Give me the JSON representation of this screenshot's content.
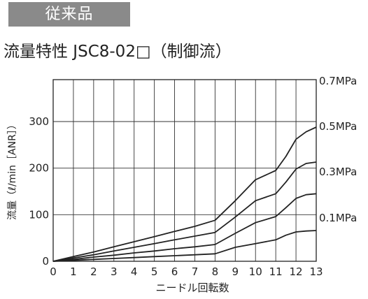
{
  "badge": "従来品",
  "heading": "流量特性 JSC8-02□（制御流）",
  "chart_data": {
    "type": "line",
    "title": "流量特性 JSC8-02□（制御流）",
    "xlabel": "ニードル回転数",
    "ylabel": "流量（ℓ/min［ANR］）",
    "xlim": [
      0,
      13
    ],
    "ylim": [
      0,
      390
    ],
    "x_ticks": [
      "0",
      "1",
      "2",
      "3",
      "4",
      "5",
      "6",
      "7",
      "8",
      "9",
      "10",
      "11",
      "12",
      "13"
    ],
    "y_ticks": [
      "0",
      "100",
      "200",
      "300"
    ],
    "grid": true,
    "series": [
      {
        "name": "0.7MPa",
        "points": [
          [
            0,
            0
          ],
          [
            1,
            10
          ],
          [
            2,
            20
          ],
          [
            3,
            31
          ],
          [
            4,
            42
          ],
          [
            5,
            53
          ],
          [
            6,
            64
          ],
          [
            7,
            75
          ],
          [
            8,
            88
          ],
          [
            9,
            130
          ],
          [
            10,
            175
          ],
          [
            11,
            195
          ],
          [
            11.5,
            225
          ],
          [
            12,
            262
          ],
          [
            12.5,
            278
          ],
          [
            13,
            288
          ]
        ]
      },
      {
        "name": "0.5MPa",
        "points": [
          [
            0,
            0
          ],
          [
            1,
            7
          ],
          [
            2,
            14
          ],
          [
            3,
            22
          ],
          [
            4,
            30
          ],
          [
            5,
            38
          ],
          [
            6,
            46
          ],
          [
            7,
            54
          ],
          [
            8,
            62
          ],
          [
            9,
            95
          ],
          [
            10,
            130
          ],
          [
            11,
            145
          ],
          [
            11.5,
            170
          ],
          [
            12,
            198
          ],
          [
            12.5,
            210
          ],
          [
            13,
            213
          ]
        ]
      },
      {
        "name": "0.3MPa",
        "points": [
          [
            0,
            0
          ],
          [
            1,
            4
          ],
          [
            2,
            9
          ],
          [
            3,
            13
          ],
          [
            4,
            18
          ],
          [
            5,
            22
          ],
          [
            6,
            27
          ],
          [
            7,
            31
          ],
          [
            8,
            36
          ],
          [
            9,
            60
          ],
          [
            10,
            83
          ],
          [
            11,
            96
          ],
          [
            11.5,
            115
          ],
          [
            12,
            135
          ],
          [
            12.5,
            143
          ],
          [
            13,
            145
          ]
        ]
      },
      {
        "name": "0.1MPa",
        "points": [
          [
            0,
            0
          ],
          [
            1,
            2
          ],
          [
            2,
            4
          ],
          [
            3,
            6
          ],
          [
            4,
            8
          ],
          [
            5,
            10
          ],
          [
            6,
            12
          ],
          [
            7,
            14
          ],
          [
            8,
            16
          ],
          [
            9,
            30
          ],
          [
            10,
            38
          ],
          [
            11,
            46
          ],
          [
            11.5,
            56
          ],
          [
            12,
            63
          ],
          [
            12.5,
            65
          ],
          [
            13,
            66
          ]
        ]
      }
    ]
  }
}
